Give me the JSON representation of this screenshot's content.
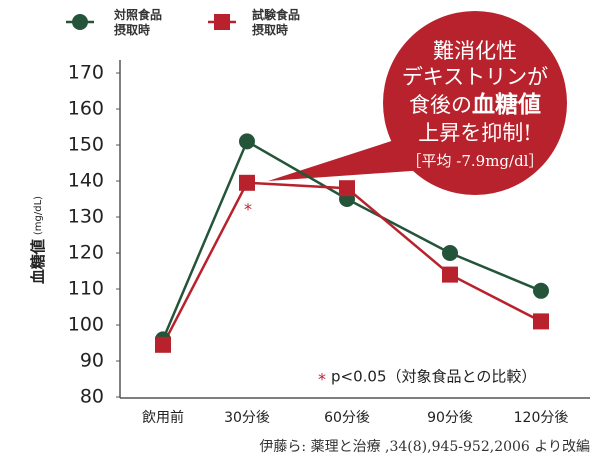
{
  "chart_data": {
    "type": "line",
    "categories": [
      "飲用前",
      "30分後",
      "60分後",
      "90分後",
      "120分後"
    ],
    "series": [
      {
        "name": "対照食品摂取時",
        "color": "#24553a",
        "marker": "circle",
        "values": [
          96,
          151,
          135,
          120,
          109.5
        ]
      },
      {
        "name": "試験食品摂取時",
        "color": "#b8222c",
        "marker": "square",
        "values": [
          94.5,
          139.5,
          138,
          114,
          101
        ]
      }
    ],
    "ylim": [
      80,
      170
    ],
    "yticks": [
      80,
      90,
      100,
      110,
      120,
      130,
      140,
      150,
      160,
      170
    ],
    "y_label": "血糖値",
    "y_unit": "(mg/dL)",
    "significance_mark": "*",
    "note_mark": "*",
    "note": "p<0.05（対象食品との比較）",
    "bubble_lines": [
      "難消化性",
      "デキストリンが",
      "食後の",
      "血糖値",
      "上昇を抑制!",
      "［平均 -7.9mg/dl］"
    ],
    "bubble_color": "#b8222c",
    "source": "伊藤ら: 薬理と治療 ,34(8),945-952,2006 より改編"
  }
}
